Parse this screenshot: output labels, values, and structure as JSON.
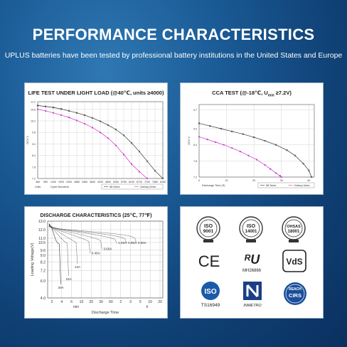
{
  "header": {
    "title": "PERFORMANCE CHARACTERISTICS",
    "subtitle": "UPLUS batteries have been tested by professional battery institutions in the United States and Europe"
  },
  "chart_data": [
    {
      "type": "line",
      "title": "LIFE TEST UNDER LIGHT LOAD (@40℃, units ≥4000)",
      "xlabel": "Cycle Numbers",
      "xunit": "Units",
      "ylabel": "OCV V",
      "x_ticks": [
        "480",
        "960",
        "1440",
        "1920",
        "2400",
        "2880",
        "3360",
        "3840",
        "4320",
        "4800",
        "5280",
        "5760",
        "6240",
        "6720",
        "7200",
        "7680",
        "8160"
      ],
      "y_ticks": [
        "7.2",
        "7.8",
        "8.4",
        "9.0",
        "9.6",
        "10.2",
        "10.8",
        "11.2"
      ],
      "xlim": [
        480,
        8160
      ],
      "ylim": [
        7.2,
        11.2
      ],
      "legend": [
        "NB Series",
        "Ordinary Series"
      ],
      "series": [
        {
          "name": "NB Series",
          "color": "#333333",
          "marker": "x",
          "x": [
            480,
            960,
            1440,
            1920,
            2400,
            2880,
            3360,
            3840,
            4320,
            4800,
            5280,
            5760,
            6240,
            6720,
            7200,
            7680,
            8160
          ],
          "values": [
            11.0,
            10.95,
            10.9,
            10.82,
            10.72,
            10.62,
            10.5,
            10.35,
            10.18,
            9.98,
            9.75,
            9.45,
            9.05,
            8.6,
            8.1,
            7.6,
            7.2
          ]
        },
        {
          "name": "Ordinary Series",
          "color": "#cc33cc",
          "marker": "o",
          "x": [
            480,
            960,
            1440,
            1920,
            2400,
            2880,
            3360,
            3840,
            4320,
            4800,
            5280,
            5760,
            6240,
            6720,
            7200
          ],
          "values": [
            10.8,
            10.72,
            10.62,
            10.5,
            10.38,
            10.22,
            10.05,
            9.85,
            9.6,
            9.3,
            8.92,
            8.45,
            7.95,
            7.55,
            7.2
          ]
        }
      ]
    },
    {
      "type": "line",
      "title": "CCA TEST (@-18℃, U",
      "title_sub": "min",
      "title_end": " ≥7.2V)",
      "xlabel": "Discharge Time (S)",
      "ylabel": "OCV V",
      "x_ticks": [
        "0",
        "10",
        "20",
        "30",
        "40"
      ],
      "y_ticks": [
        "7.2",
        "7.8",
        "8.4",
        "9.0",
        "9.7"
      ],
      "xlim": [
        0,
        42
      ],
      "ylim": [
        7.2,
        9.9
      ],
      "legend": [
        "NB Series",
        "Ordinary Series"
      ],
      "series": [
        {
          "name": "NB Series",
          "color": "#333333",
          "marker": "x",
          "x": [
            0,
            4,
            8,
            12,
            16,
            20,
            24,
            28,
            32,
            35,
            38,
            40,
            41
          ],
          "values": [
            9.2,
            9.1,
            9.0,
            8.9,
            8.8,
            8.68,
            8.55,
            8.4,
            8.2,
            8.0,
            7.7,
            7.45,
            7.2
          ]
        },
        {
          "name": "Ordinary Series",
          "color": "#cc33cc",
          "marker": "o",
          "x": [
            0,
            3,
            6,
            9,
            12,
            15,
            18,
            21,
            24,
            26,
            28,
            29.5,
            30
          ],
          "values": [
            8.7,
            8.6,
            8.5,
            8.4,
            8.28,
            8.15,
            8.0,
            7.85,
            7.65,
            7.5,
            7.35,
            7.25,
            7.2
          ]
        }
      ]
    },
    {
      "type": "line",
      "title": "DISCHARGE CHARACTERISTICS (25℃, 77℉)",
      "xlabel": "Discharge Time",
      "ylabel": "Loading Voltage(V)",
      "x_ticks": [
        "2",
        "4",
        "6",
        "10",
        "20",
        "30",
        "60",
        "2",
        "3",
        "5",
        "10",
        "20"
      ],
      "x_unit_labels": [
        "min",
        "h"
      ],
      "y_ticks": [
        "4.0",
        "6.0",
        "7.2",
        "8.2",
        "9.0",
        "9.6",
        "10.5",
        "11.0",
        "12.0",
        "13.0"
      ],
      "ylim": [
        4,
        13
      ],
      "curve_labels": [
        "30A",
        "18A",
        "12A",
        "6.48A",
        "3.60A",
        "1.50A",
        "0.98A",
        "0.60A"
      ]
    }
  ],
  "certifications": {
    "items": [
      "ISO 9001",
      "ISO 14001",
      "OHSAS 18001",
      "CE",
      "UL MH26866",
      "VdS",
      "ISO TS16949",
      "INMETRO",
      "REACH CIRS"
    ]
  }
}
